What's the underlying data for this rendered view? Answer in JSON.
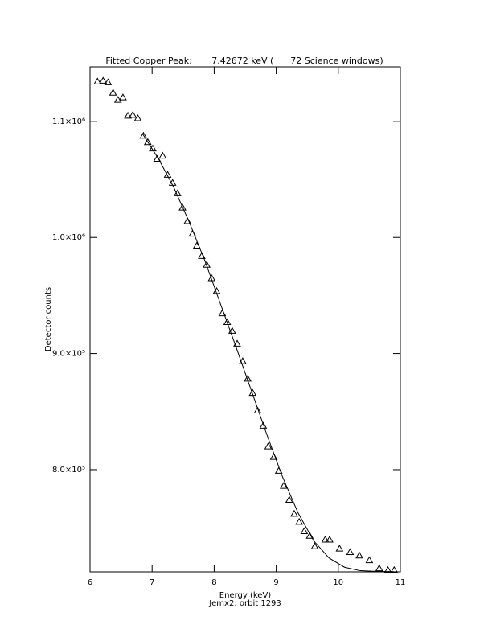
{
  "chart_data": {
    "type": "scatter",
    "title": "Fitted Copper Peak:       7.42672 keV (      72 Science windows)",
    "x_label": "Energy (keV)",
    "subtitle": "Jemx2: orbit 1293",
    "y_label": "Detector counts",
    "xlim": [
      6,
      11
    ],
    "ylim": [
      712000,
      1147000
    ],
    "xticks": [
      6,
      7,
      8,
      9,
      10,
      11
    ],
    "yticks": [
      {
        "value": 800000,
        "label": "8.0×10⁵"
      },
      {
        "value": 900000,
        "label": "9.0×10⁵"
      },
      {
        "value": 1000000,
        "label": "1.0×10⁶"
      },
      {
        "value": 1100000,
        "label": "1.1×10⁶"
      }
    ],
    "series": [
      {
        "marker": "triangle",
        "color": "#000000",
        "x": [
          6.12,
          6.21,
          6.29,
          6.37,
          6.45,
          6.53,
          6.61,
          6.69,
          6.77,
          6.86,
          6.93,
          7.01,
          7.08,
          7.17,
          7.25,
          7.33,
          7.41,
          7.49,
          7.57,
          7.65,
          7.72,
          7.8,
          7.88,
          7.96,
          8.04,
          8.13,
          8.21,
          8.29,
          8.37,
          8.46,
          8.54,
          8.62,
          8.7,
          8.79,
          8.87,
          8.96,
          9.04,
          9.12,
          9.21,
          9.29,
          9.37,
          9.45,
          9.54,
          9.62,
          9.79,
          9.86,
          10.02,
          10.19,
          10.34,
          10.5,
          10.66,
          10.8,
          10.9
        ],
        "values": [
          1134300,
          1135000,
          1133600,
          1124700,
          1118500,
          1120600,
          1104800,
          1105500,
          1102700,
          1087600,
          1082100,
          1076600,
          1067700,
          1070400,
          1053900,
          1047000,
          1038000,
          1025700,
          1014000,
          1003200,
          992900,
          984000,
          976400,
          964800,
          953800,
          934600,
          927100,
          919500,
          908500,
          893400,
          878300,
          866000,
          850900,
          837800,
          820000,
          811000,
          799000,
          786000,
          774000,
          762000,
          755000,
          747000,
          743000,
          734000,
          739700,
          739700,
          732000,
          729000,
          726000,
          722000,
          715000,
          713500,
          713500
        ]
      },
      {
        "marker": "line",
        "color": "#000000",
        "x": [
          6.85,
          7.1,
          7.35,
          7.6,
          7.85,
          8.1,
          8.35,
          8.6,
          8.85,
          9.1,
          9.35,
          9.6,
          9.85,
          10.1,
          10.35,
          10.6,
          10.9
        ],
        "values": [
          1089000,
          1068000,
          1043000,
          1013000,
          980000,
          943000,
          906000,
          868000,
          830000,
          794000,
          763000,
          739000,
          724000,
          716000,
          713000,
          712400,
          712200
        ]
      }
    ]
  }
}
